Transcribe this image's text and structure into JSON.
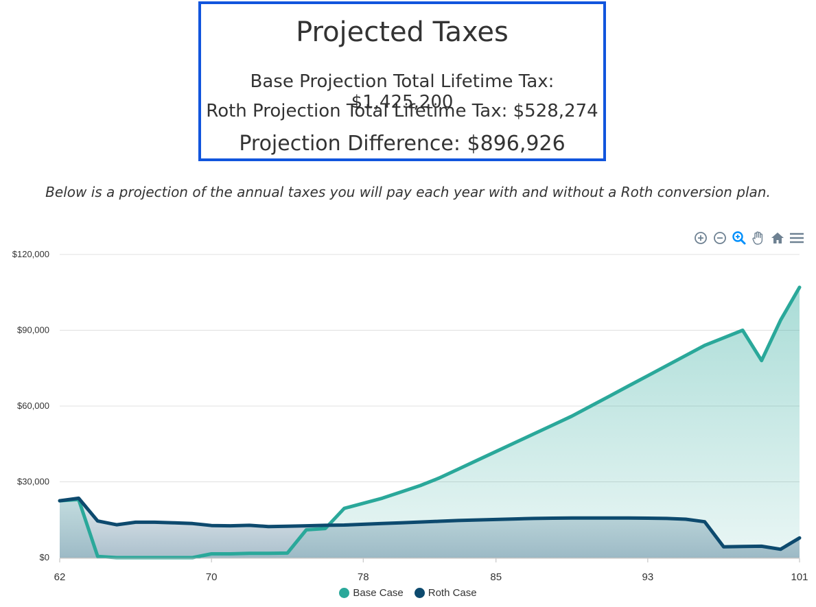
{
  "summary": {
    "title": "Projected Taxes",
    "base_line": "Base Projection Total Lifetime Tax: $1,425,200",
    "roth_line": "Roth Projection Total Lifetime Tax: $528,274",
    "difference_line": "Projection Difference: $896,926"
  },
  "subtitle": "Below is a projection of the annual taxes you will pay each year with and without a Roth conversion plan.",
  "toolbar": {
    "icons": [
      "zoom-in-icon",
      "zoom-out-icon",
      "selection-zoom-icon",
      "pan-hand-icon",
      "home-reset-icon",
      "menu-icon"
    ]
  },
  "colors": {
    "base": "#2aa89a",
    "roth": "#0d4a6e",
    "box_border": "#1155dd",
    "toolbar_icon": "#6e8192",
    "toolbar_active": "#008ffb"
  },
  "chart_data": {
    "type": "area",
    "x_ticks": [
      "62",
      "70",
      "78",
      "85",
      "93",
      "101"
    ],
    "y_ticks": [
      "$0",
      "$30,000",
      "$60,000",
      "$90,000",
      "$120,000"
    ],
    "ylim": [
      0,
      120000
    ],
    "xlim": [
      62,
      101
    ],
    "grid": true,
    "legend_position": "bottom-center",
    "x": [
      62,
      63,
      64,
      65,
      66,
      67,
      68,
      69,
      70,
      71,
      72,
      73,
      74,
      75,
      76,
      77,
      78,
      79,
      80,
      81,
      82,
      83,
      84,
      85,
      86,
      87,
      88,
      89,
      90,
      91,
      92,
      93,
      94,
      95,
      96,
      97,
      98,
      99,
      100,
      101
    ],
    "series": [
      {
        "name": "Base Case",
        "values": [
          22500,
          23000,
          500,
          0,
          0,
          0,
          0,
          0,
          1500,
          1500,
          1700,
          1700,
          1800,
          11000,
          11500,
          19500,
          21500,
          23500,
          26000,
          28500,
          31500,
          35000,
          38500,
          42000,
          45500,
          49000,
          52500,
          56000,
          60000,
          64000,
          68000,
          72000,
          76000,
          80000,
          84000,
          87000,
          90000,
          78000,
          94000,
          107000
        ]
      },
      {
        "name": "Roth Case",
        "values": [
          22500,
          23500,
          14500,
          13000,
          14000,
          14000,
          13800,
          13500,
          12700,
          12600,
          12800,
          12300,
          12400,
          12600,
          12800,
          12900,
          13200,
          13500,
          13800,
          14100,
          14400,
          14700,
          14900,
          15100,
          15300,
          15500,
          15600,
          15700,
          15700,
          15700,
          15700,
          15600,
          15500,
          15200,
          14200,
          4300,
          4400,
          4500,
          3300,
          7800
        ]
      }
    ]
  }
}
